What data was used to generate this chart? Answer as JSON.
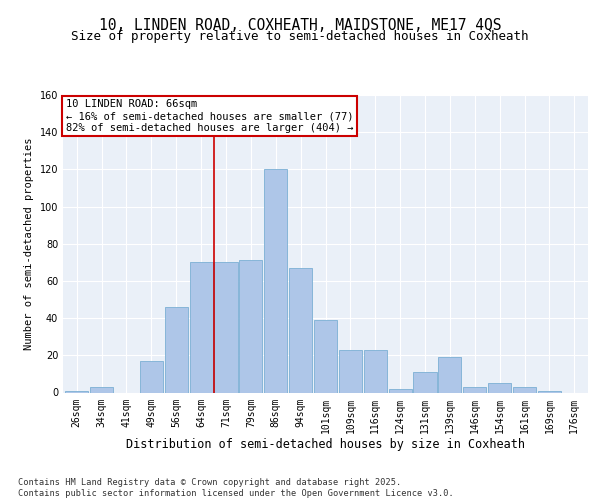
{
  "title1": "10, LINDEN ROAD, COXHEATH, MAIDSTONE, ME17 4QS",
  "title2": "Size of property relative to semi-detached houses in Coxheath",
  "xlabel": "Distribution of semi-detached houses by size in Coxheath",
  "ylabel": "Number of semi-detached properties",
  "categories": [
    "26sqm",
    "34sqm",
    "41sqm",
    "49sqm",
    "56sqm",
    "64sqm",
    "71sqm",
    "79sqm",
    "86sqm",
    "94sqm",
    "101sqm",
    "109sqm",
    "116sqm",
    "124sqm",
    "131sqm",
    "139sqm",
    "146sqm",
    "154sqm",
    "161sqm",
    "169sqm",
    "176sqm"
  ],
  "values": [
    1,
    3,
    0,
    17,
    46,
    70,
    70,
    71,
    120,
    67,
    39,
    23,
    23,
    2,
    11,
    19,
    3,
    5,
    3,
    1,
    0
  ],
  "bar_color": "#aec6e8",
  "bar_edge_color": "#7bafd4",
  "background_color": "#eaf0f8",
  "grid_color": "#ffffff",
  "pct_smaller": 16,
  "n_smaller": 77,
  "pct_larger": 82,
  "n_larger": 404,
  "red_line_color": "#cc0000",
  "annotation_box_color": "#cc0000",
  "ylim": [
    0,
    160
  ],
  "yticks": [
    0,
    20,
    40,
    60,
    80,
    100,
    120,
    140,
    160
  ],
  "red_line_index": 6,
  "footnote": "Contains HM Land Registry data © Crown copyright and database right 2025.\nContains public sector information licensed under the Open Government Licence v3.0.",
  "title1_fontsize": 10.5,
  "title2_fontsize": 9,
  "xlabel_fontsize": 8.5,
  "ylabel_fontsize": 7.5,
  "tick_fontsize": 7,
  "annot_fontsize": 7.5,
  "footnote_fontsize": 6.2
}
